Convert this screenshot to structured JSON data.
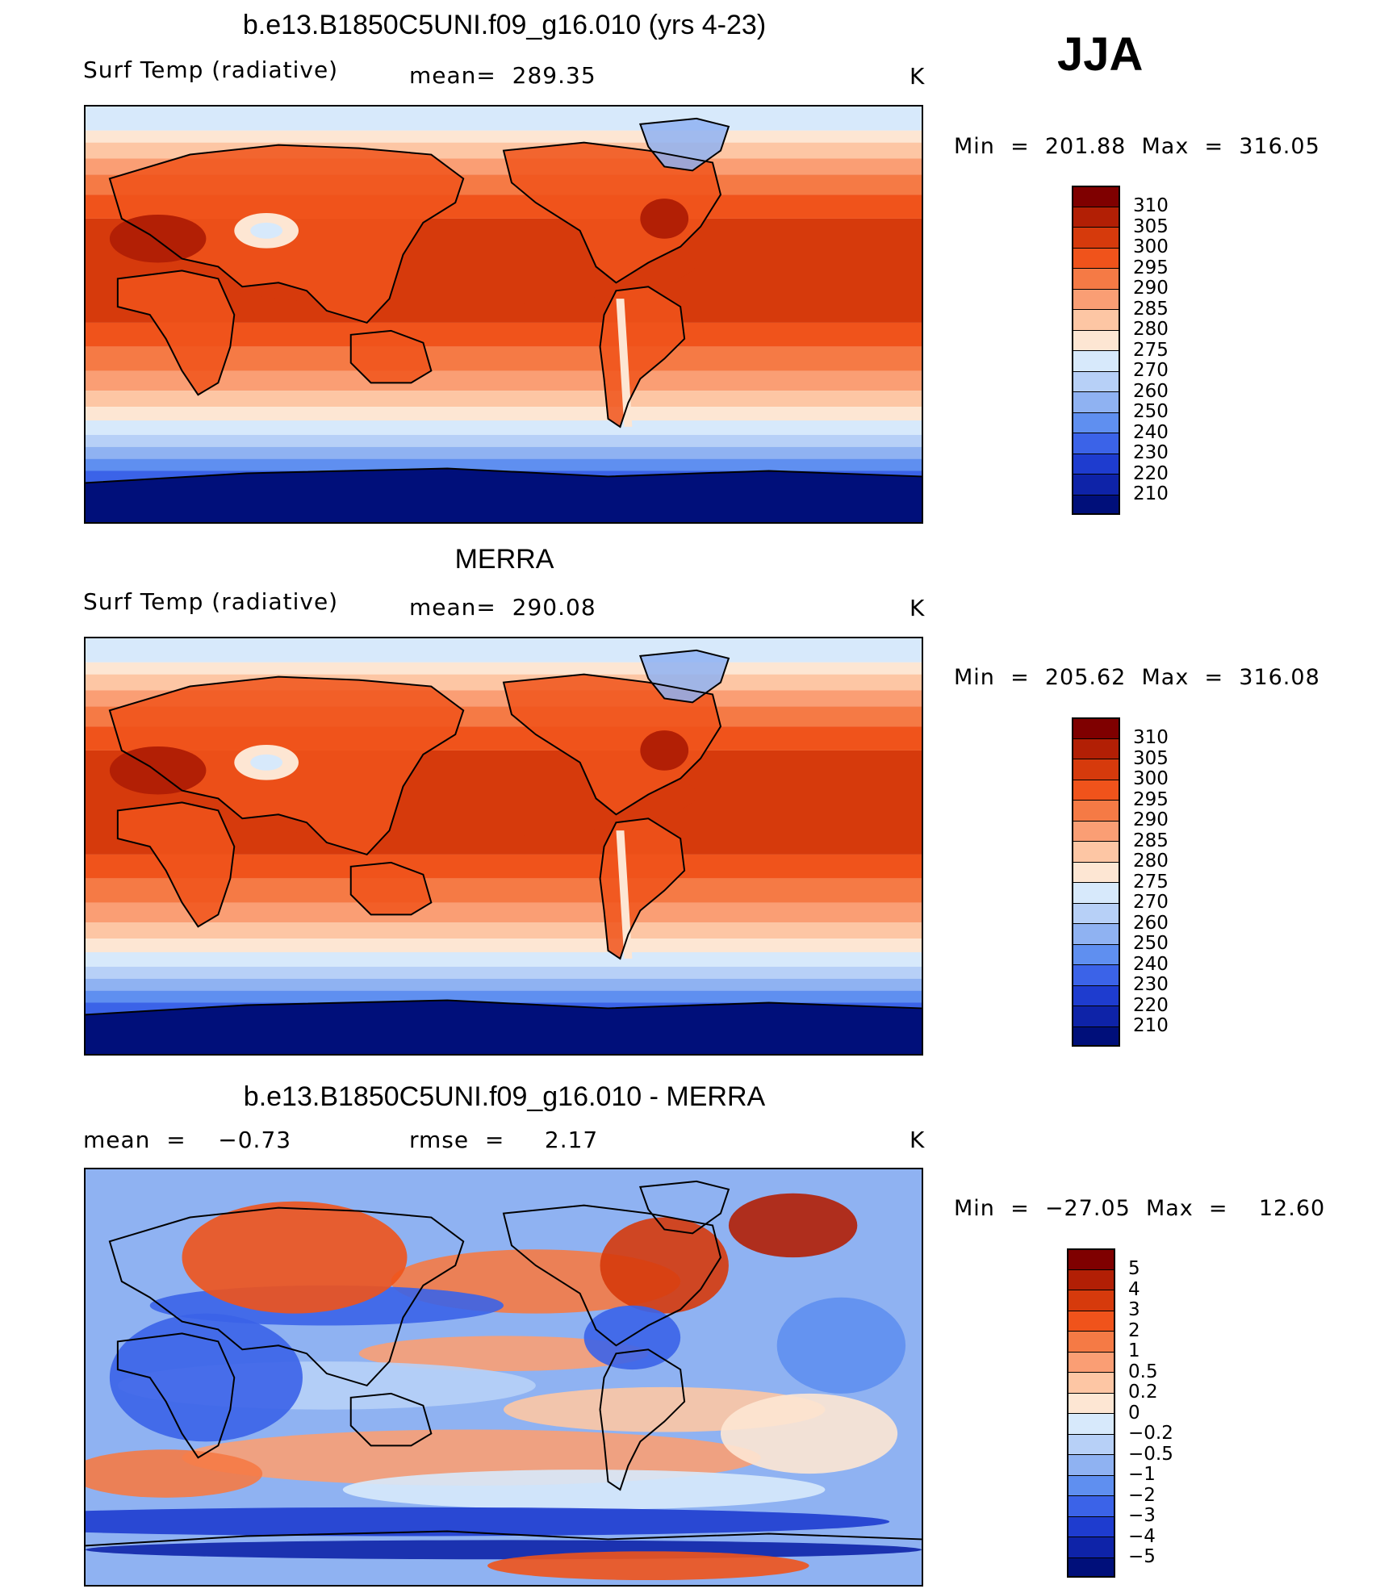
{
  "season": "JJA",
  "panels": [
    {
      "title": "b.e13.B1850C5UNI.f09_g16.010 (yrs 4-23)",
      "left_label": "Surf Temp (radiative)",
      "center_label": "mean=  289.35",
      "units": "K",
      "min_max": "Min  =  201.88  Max  =  316.05",
      "map_type": "absolute"
    },
    {
      "title": "MERRA",
      "left_label": "Surf Temp (radiative)",
      "center_label": "mean=  290.08",
      "units": "K",
      "min_max": "Min  =  205.62  Max  =  316.08",
      "map_type": "absolute"
    },
    {
      "title": "b.e13.B1850C5UNI.f09_g16.010 - MERRA",
      "left_label": "mean  =    −0.73",
      "center_label": "rmse  =     2.17",
      "units": "K",
      "min_max": "Min  =  −27.05  Max  =    12.60",
      "map_type": "difference"
    }
  ],
  "colorbars": {
    "absolute": {
      "labels": [
        "310",
        "305",
        "300",
        "295",
        "290",
        "285",
        "280",
        "275",
        "270",
        "260",
        "250",
        "240",
        "230",
        "220",
        "210"
      ],
      "colors": [
        "#7f0000",
        "#b21f05",
        "#d63a0c",
        "#f0531b",
        "#f57a45",
        "#fa9e74",
        "#fdc6a4",
        "#fde6d3",
        "#d7e9fb",
        "#b7d0f7",
        "#8fb2f2",
        "#5f8ff0",
        "#3b63e8",
        "#1e3ccf",
        "#0e23a8",
        "#000f7a"
      ]
    },
    "difference": {
      "labels": [
        "5",
        "4",
        "3",
        "2",
        "1",
        "0.5",
        "0.2",
        "0",
        "−0.2",
        "−0.5",
        "−1",
        "−2",
        "−3",
        "−4",
        "−5"
      ],
      "colors": [
        "#7f0000",
        "#b21f05",
        "#d63a0c",
        "#f0531b",
        "#f57a45",
        "#fa9e74",
        "#fdc6a4",
        "#fde6d3",
        "#d7e9fb",
        "#b7d0f7",
        "#8fb2f2",
        "#5f8ff0",
        "#3b63e8",
        "#1e3ccf",
        "#0e23a8",
        "#000f7a"
      ]
    }
  }
}
